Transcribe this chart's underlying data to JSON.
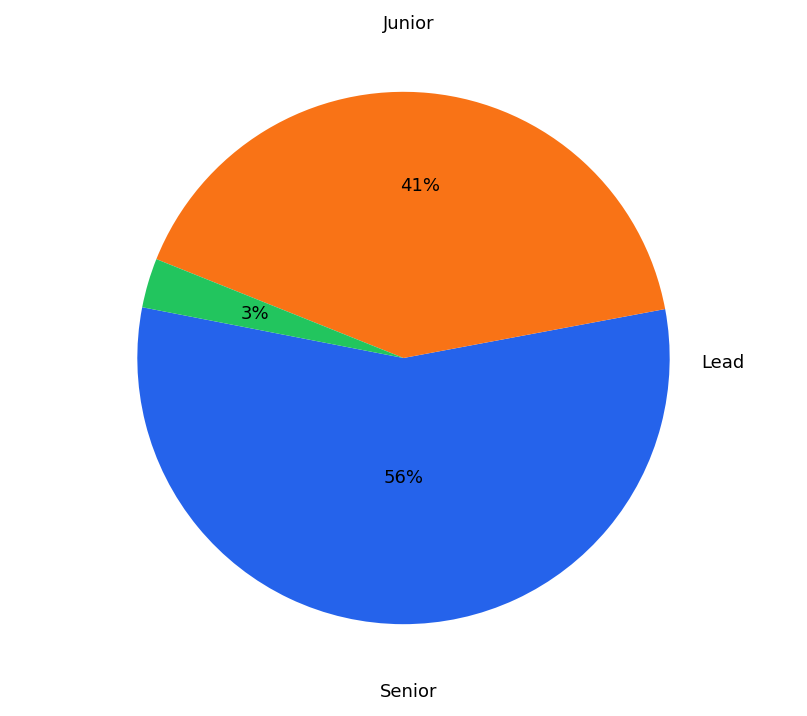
{
  "labels": [
    "Junior",
    "Senior",
    "Lead"
  ],
  "values": [
    56,
    41,
    3
  ],
  "colors": [
    "#2563EB",
    "#F97316",
    "#22C55E"
  ],
  "startangle": 169,
  "background_color": "#ffffff",
  "pctdistance_junior": 0.45,
  "pctdistance_senior": 0.65,
  "pctdistance_lead": 0.5,
  "label_fontsize": 13,
  "pct_fontsize": 13
}
